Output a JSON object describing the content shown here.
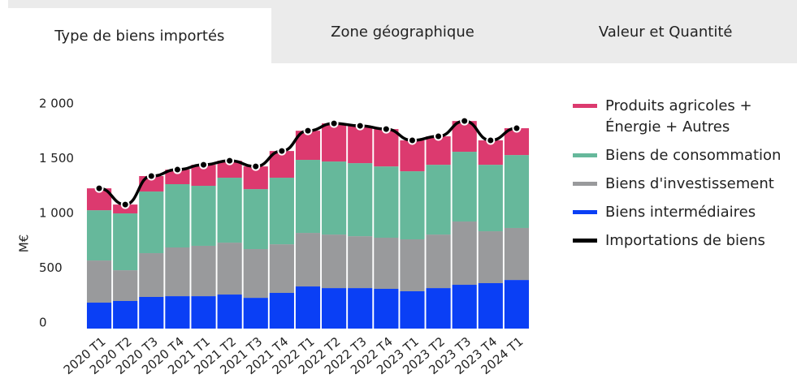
{
  "tabs": [
    "Type de biens importés",
    "Zone géographique",
    "Valeur et Quantité"
  ],
  "chart_data": {
    "type": "bar",
    "stacked": true,
    "y_label": "M€",
    "categories": [
      "2020 T1",
      "2020 T2",
      "2020 T3",
      "2020 T4",
      "2021 T1",
      "2021 T2",
      "2021 T3",
      "2021 T4",
      "2022 T1",
      "2022 T2",
      "2022 T3",
      "2022 T4",
      "2023 T1",
      "2023 T2",
      "2023 T3",
      "2023 T4",
      "2024 T1"
    ],
    "series": [
      {
        "name": "Biens intermédiaires",
        "color": "#0a3ff5",
        "values": [
          237,
          252,
          289,
          296,
          296,
          311,
          281,
          326,
          385,
          370,
          370,
          363,
          341,
          370,
          400,
          415,
          444
        ]
      },
      {
        "name": "Biens d'investissement",
        "color": "#999a9c",
        "values": [
          385,
          281,
          400,
          445,
          460,
          474,
          445,
          444,
          489,
          489,
          474,
          467,
          474,
          489,
          578,
          474,
          475
        ]
      },
      {
        "name": "Biens de consommation",
        "color": "#66b89b",
        "values": [
          459,
          519,
          563,
          578,
          548,
          593,
          548,
          608,
          667,
          667,
          667,
          651,
          622,
          637,
          637,
          607,
          666
        ]
      },
      {
        "name": "Produits agricoles + Énergie + Autres",
        "color": "#dc3a6f",
        "values": [
          200,
          81,
          141,
          133,
          192,
          155,
          207,
          244,
          266,
          348,
          341,
          341,
          282,
          260,
          281,
          223,
          245
        ]
      },
      {
        "name": "Importations de biens",
        "color": "#000000",
        "type": "line",
        "values": [
          1281,
          1133,
          1393,
          1452,
          1496,
          1533,
          1481,
          1622,
          1807,
          1874,
          1852,
          1822,
          1719,
          1756,
          1896,
          1719,
          1830
        ]
      }
    ],
    "ylim": [
      0,
      2060
    ],
    "yticks": [
      0,
      500,
      {
        "value": 1000,
        "label": "1 000"
      },
      {
        "value": 1500,
        "label": "1 500"
      },
      {
        "value": 2000,
        "label": "2 000"
      }
    ]
  }
}
